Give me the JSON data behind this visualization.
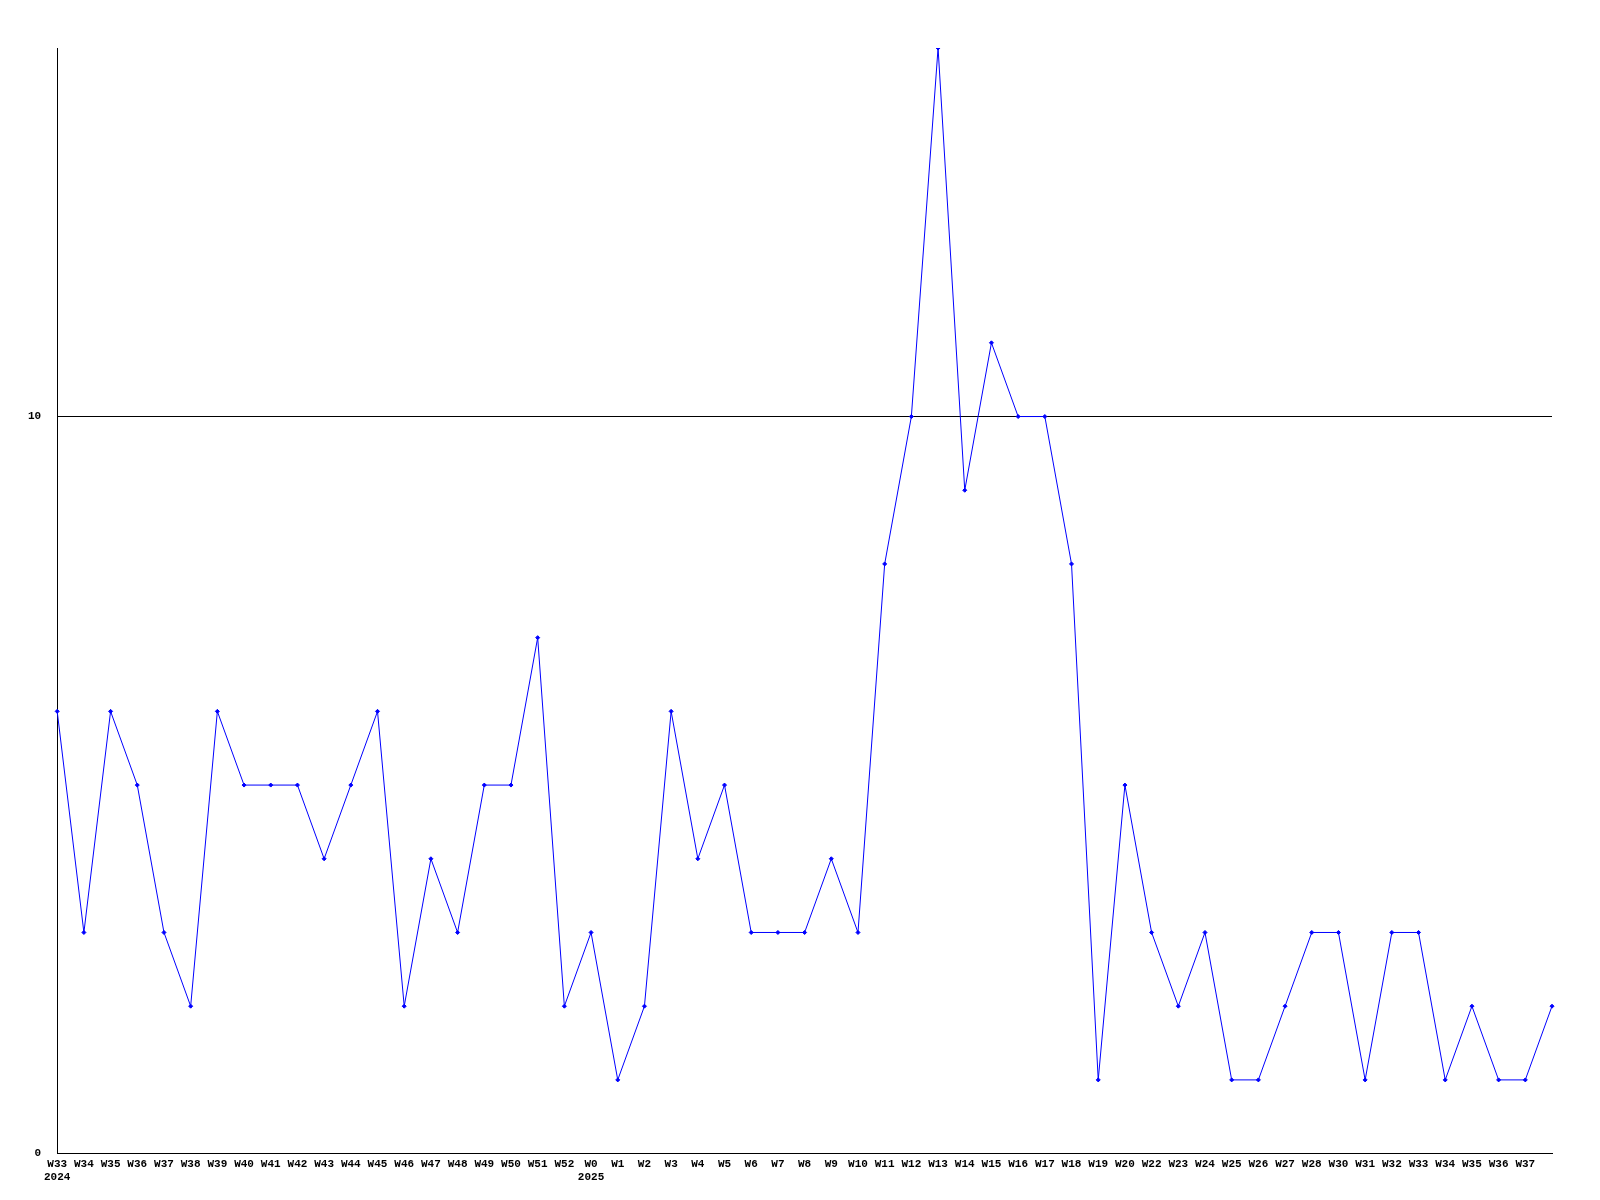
{
  "chart_data": {
    "type": "line",
    "categories": [
      "W33\n2024",
      "W34",
      "W35",
      "W36",
      "W37",
      "W38",
      "W39",
      "W40",
      "W41",
      "W42",
      "W43",
      "W44",
      "W45",
      "W46",
      "W47",
      "W48",
      "W49",
      "W50",
      "W51",
      "W52",
      "W0\n2025",
      "W1",
      "W2",
      "W3",
      "W4",
      "W5",
      "W6",
      "W7",
      "W8",
      "W9",
      "W10",
      "W11",
      "W12",
      "W13",
      "W14",
      "W15",
      "W16",
      "W17",
      "W18",
      "W19",
      "W20",
      "W22",
      "W23",
      "W24",
      "W25",
      "W26",
      "W27",
      "W28",
      "W30",
      "W31",
      "W32",
      "W33",
      "W34",
      "W35",
      "W36",
      "W37",
      null
    ],
    "values": [
      6,
      3,
      6,
      5,
      3,
      2,
      6,
      5,
      5,
      5,
      4,
      5,
      6,
      2,
      4,
      3,
      5,
      5,
      7,
      2,
      3,
      1,
      2,
      6,
      4,
      5,
      3,
      3,
      3,
      4,
      3,
      8,
      10,
      15,
      9,
      11,
      10,
      10,
      8,
      1,
      5,
      3,
      2,
      3,
      1,
      1,
      2,
      3,
      3,
      1,
      3,
      3,
      1,
      2,
      1,
      1,
      2
    ],
    "color": "#0000ff",
    "ylim": [
      0,
      15
    ],
    "yticks": [
      0,
      10
    ],
    "grid": "y",
    "marker": "diamond",
    "legend": false
  }
}
